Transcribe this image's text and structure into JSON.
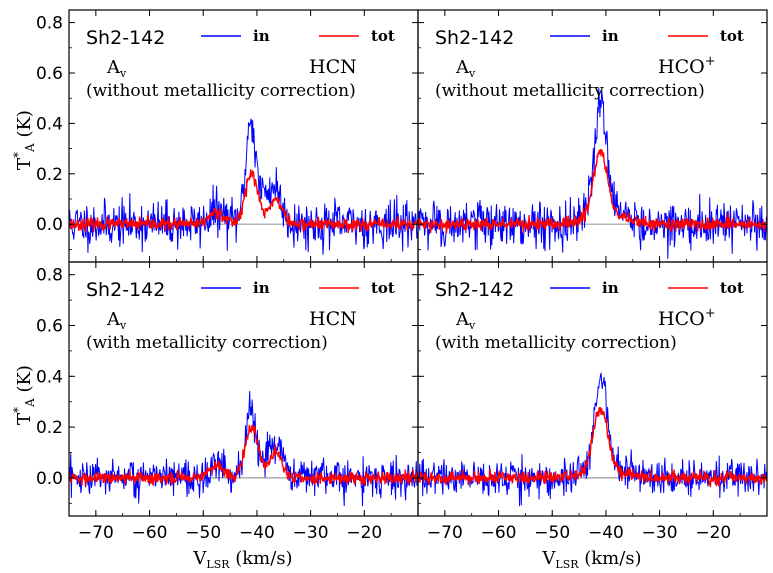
{
  "figure": {
    "y_axis_label": "T",
    "y_axis_label_sup": "*",
    "y_axis_label_sub": "A",
    "y_axis_label_unit": " (K)",
    "x_axis_label": "V",
    "x_axis_label_sub": "LSR",
    "x_axis_label_unit": " (km/s)",
    "colors": {
      "in": "#0000ff",
      "tot": "#ff0000",
      "zero_line": "#9e9e9e",
      "frame": "#000000"
    }
  },
  "chart_data": [
    {
      "type": "line",
      "source": "Sh2-142",
      "molecule": "HCN",
      "av_label": "A",
      "av_sub": "v",
      "note": "(without metallicity correction)",
      "legend": [
        "in",
        "tot"
      ],
      "xlim": [
        -75,
        -10
      ],
      "ylim": [
        -0.15,
        0.85
      ],
      "yticks": [
        "0.0",
        "0.2",
        "0.4",
        "0.6",
        "0.8"
      ],
      "xticks": [
        "−70",
        "−60",
        "−50",
        "−40",
        "−30",
        "−20"
      ],
      "series": [
        {
          "name": "in",
          "noise_rms": 0.045,
          "components": [
            {
              "center": -47.5,
              "peak": 0.05,
              "width": 1.4
            },
            {
              "center": -41.2,
              "peak": 0.32,
              "width": 0.8
            },
            {
              "center": -40.0,
              "peak": 0.12,
              "width": 2.0
            },
            {
              "center": -36.5,
              "peak": 0.12,
              "width": 1.2
            }
          ]
        },
        {
          "name": "tot",
          "noise_rms": 0.012,
          "components": [
            {
              "center": -47.5,
              "peak": 0.05,
              "width": 1.4
            },
            {
              "center": -41.0,
              "peak": 0.2,
              "width": 1.2
            },
            {
              "center": -36.5,
              "peak": 0.1,
              "width": 1.2
            }
          ]
        }
      ]
    },
    {
      "type": "line",
      "source": "Sh2-142",
      "molecule": "HCO",
      "molecule_sup": "+",
      "av_label": "A",
      "av_sub": "v",
      "note": "(without metallicity correction)",
      "legend": [
        "in",
        "tot"
      ],
      "xlim": [
        -75,
        -10
      ],
      "ylim": [
        -0.15,
        0.85
      ],
      "yticks": [
        "0.0",
        "0.2",
        "0.4",
        "0.6",
        "0.8"
      ],
      "xticks": [
        "−70",
        "−60",
        "−50",
        "−40",
        "−30",
        "−20"
      ],
      "series": [
        {
          "name": "in",
          "noise_rms": 0.045,
          "components": [
            {
              "center": -41.0,
              "peak": 0.42,
              "width": 1.1
            },
            {
              "center": -40.5,
              "peak": 0.08,
              "width": 3.0
            }
          ]
        },
        {
          "name": "tot",
          "noise_rms": 0.012,
          "components": [
            {
              "center": -41.0,
              "peak": 0.26,
              "width": 1.3
            },
            {
              "center": -40.0,
              "peak": 0.03,
              "width": 4.0
            }
          ]
        }
      ]
    },
    {
      "type": "line",
      "source": "Sh2-142",
      "molecule": "HCN",
      "av_label": "A",
      "av_sub": "v",
      "note": "(with metallicity correction)",
      "legend": [
        "in",
        "tot"
      ],
      "xlim": [
        -75,
        -10
      ],
      "ylim": [
        -0.15,
        0.85
      ],
      "yticks": [
        "0.0",
        "0.2",
        "0.4",
        "0.6",
        "0.8"
      ],
      "xticks": [
        "−70",
        "−60",
        "−50",
        "−40",
        "−30",
        "−20"
      ],
      "series": [
        {
          "name": "in",
          "noise_rms": 0.035,
          "components": [
            {
              "center": -47.5,
              "peak": 0.05,
              "width": 1.4
            },
            {
              "center": -41.2,
              "peak": 0.22,
              "width": 0.8
            },
            {
              "center": -40.0,
              "peak": 0.08,
              "width": 2.0
            },
            {
              "center": -36.5,
              "peak": 0.12,
              "width": 1.2
            }
          ]
        },
        {
          "name": "tot",
          "noise_rms": 0.012,
          "components": [
            {
              "center": -47.5,
              "peak": 0.05,
              "width": 1.4
            },
            {
              "center": -41.0,
              "peak": 0.2,
              "width": 1.2
            },
            {
              "center": -36.5,
              "peak": 0.1,
              "width": 1.2
            }
          ]
        }
      ]
    },
    {
      "type": "line",
      "source": "Sh2-142",
      "molecule": "HCO",
      "molecule_sup": "+",
      "av_label": "A",
      "av_sub": "v",
      "note": "(with metallicity correction)",
      "legend": [
        "in",
        "tot"
      ],
      "xlim": [
        -75,
        -10
      ],
      "ylim": [
        -0.15,
        0.85
      ],
      "yticks": [
        "0.0",
        "0.2",
        "0.4",
        "0.6",
        "0.8"
      ],
      "xticks": [
        "−70",
        "−60",
        "−50",
        "−40",
        "−30",
        "−20"
      ],
      "series": [
        {
          "name": "in",
          "noise_rms": 0.035,
          "components": [
            {
              "center": -41.0,
              "peak": 0.34,
              "width": 1.1
            },
            {
              "center": -40.5,
              "peak": 0.06,
              "width": 3.0
            }
          ]
        },
        {
          "name": "tot",
          "noise_rms": 0.012,
          "components": [
            {
              "center": -41.0,
              "peak": 0.25,
              "width": 1.3
            },
            {
              "center": -40.0,
              "peak": 0.03,
              "width": 4.0
            }
          ]
        }
      ]
    }
  ]
}
